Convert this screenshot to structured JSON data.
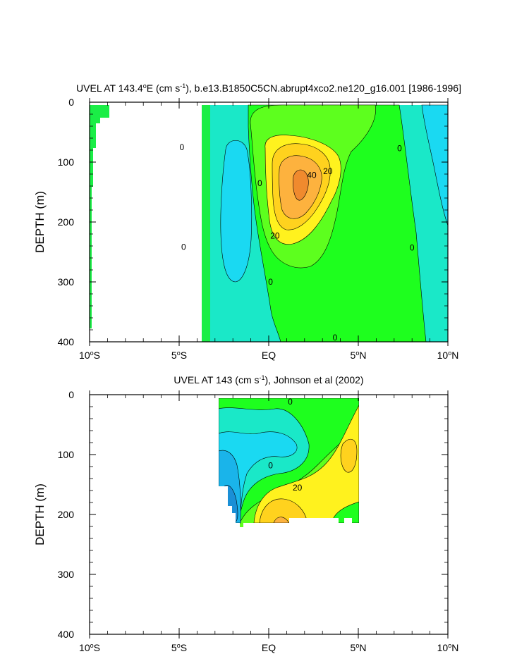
{
  "chart_data": [
    {
      "type": "contour",
      "title": "UVEL AT 143.4°E (cm s-1), b.e13.B1850C5CN.abrupt4xco2.ne120_g16.001 [1986-1996]",
      "title_parts": {
        "pre": "UVEL AT 143.4",
        "deg": "o",
        "mid": "E (cm s",
        "exp": "-1",
        "post": "), b.e13.B1850C5CN.abrupt4xco2.ne120_g16.001 [1986-1996]"
      },
      "ylabel": "DEPTH (m)",
      "xlim": [
        -10,
        10
      ],
      "ylim": [
        400,
        0
      ],
      "x_ticks": [
        {
          "value": -10,
          "num": "10",
          "deg": "o",
          "hemi": "S"
        },
        {
          "value": -5,
          "num": "5",
          "deg": "o",
          "hemi": "S"
        },
        {
          "value": 0,
          "num": "EQ",
          "deg": "",
          "hemi": ""
        },
        {
          "value": 5,
          "num": "5",
          "deg": "o",
          "hemi": "N"
        },
        {
          "value": 10,
          "num": "10",
          "deg": "o",
          "hemi": "N"
        }
      ],
      "y_ticks": [
        0,
        100,
        200,
        300,
        400
      ],
      "contour_interval": 10,
      "fill_colors": {
        "-30": "#1a8fd6",
        "-20": "#1ab4ea",
        "-10": "#1ad9f2",
        "0": "#1ae8c8",
        "10": "#1eff1e",
        "20": "#5dff1e",
        "30": "#fff21e",
        "40": "#ffd21e",
        "50": "#fdb23e"
      },
      "coast_color": "#1aee46",
      "line_labels": [
        {
          "text": "0",
          "x": -4.85,
          "y": 75
        },
        {
          "text": "0",
          "x": -0.5,
          "y": 135
        },
        {
          "text": "0",
          "x": -4.75,
          "y": 242
        },
        {
          "text": "0",
          "x": 0.1,
          "y": 300
        },
        {
          "text": "0",
          "x": 3.7,
          "y": 393
        },
        {
          "text": "0",
          "x": 7.3,
          "y": 77
        },
        {
          "text": "0",
          "x": 8.0,
          "y": 243
        },
        {
          "text": "20",
          "x": 0.35,
          "y": 223
        },
        {
          "text": "20",
          "x": 3.3,
          "y": 115
        },
        {
          "text": "40",
          "x": 2.4,
          "y": 122
        }
      ]
    },
    {
      "type": "contour",
      "title": "UVEL AT 143 (cm s-1), Johnson et al (2002)",
      "title_parts": {
        "pre": "UVEL AT 143 (cm s",
        "exp": "-1",
        "post": "), Johnson et al (2002)"
      },
      "ylabel": "DEPTH (m)",
      "xlim": [
        -10,
        10
      ],
      "ylim": [
        400,
        0
      ],
      "data_extent": {
        "x": [
          -2.8,
          5.0
        ],
        "y": [
          8,
          215
        ]
      },
      "x_ticks": [
        {
          "value": -10,
          "num": "10",
          "deg": "o",
          "hemi": "S"
        },
        {
          "value": -5,
          "num": "5",
          "deg": "o",
          "hemi": "S"
        },
        {
          "value": 0,
          "num": "EQ",
          "deg": "",
          "hemi": ""
        },
        {
          "value": 5,
          "num": "5",
          "deg": "o",
          "hemi": "N"
        },
        {
          "value": 10,
          "num": "10",
          "deg": "o",
          "hemi": "N"
        }
      ],
      "y_ticks": [
        0,
        100,
        200,
        300,
        400
      ],
      "contour_interval": 10,
      "line_labels": [
        {
          "text": "0",
          "x": 1.2,
          "y": 12
        },
        {
          "text": "0",
          "x": 0.1,
          "y": 118
        },
        {
          "text": "20",
          "x": 1.6,
          "y": 155
        }
      ]
    }
  ]
}
